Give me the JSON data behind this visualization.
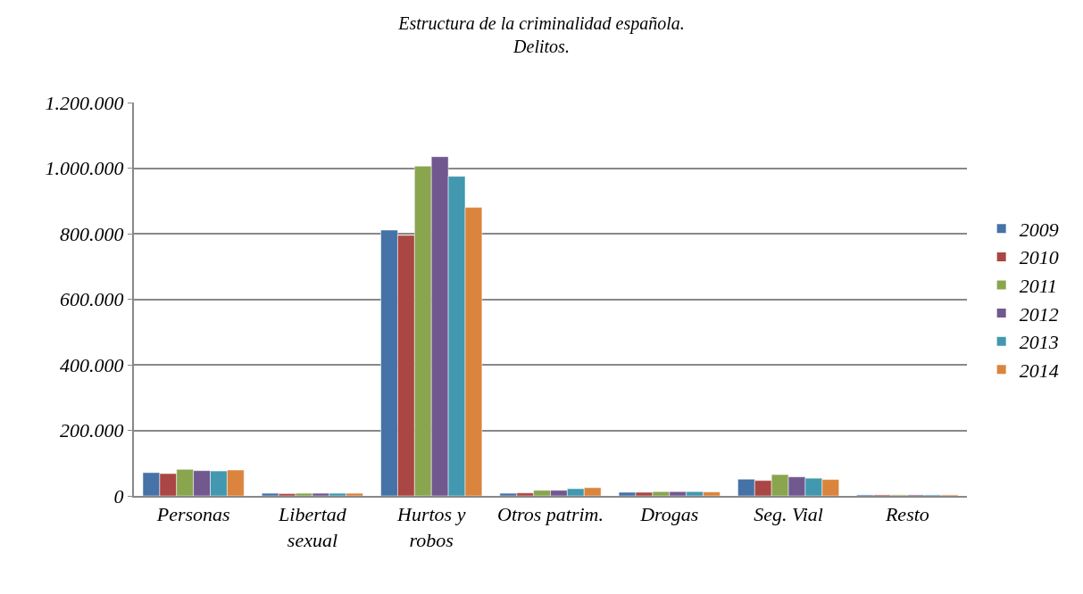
{
  "chart_data": {
    "type": "bar",
    "title": "Estructura de la criminalidad española.\nDelitos.",
    "categories": [
      "Personas",
      "Libertad sexual",
      "Hurtos y robos",
      "Otros patrim.",
      "Drogas",
      "Seg. Vial",
      "Resto"
    ],
    "series": [
      {
        "name": "2009",
        "color": "#4572a7",
        "values": [
          71000,
          8000,
          811000,
          8000,
          11000,
          51000,
          3000
        ]
      },
      {
        "name": "2010",
        "color": "#aa4643",
        "values": [
          68000,
          7000,
          795000,
          9000,
          11000,
          47000,
          3000
        ]
      },
      {
        "name": "2011",
        "color": "#89a54e",
        "values": [
          81000,
          8000,
          1006000,
          17000,
          13000,
          65000,
          3000
        ]
      },
      {
        "name": "2012",
        "color": "#71588f",
        "values": [
          77000,
          8000,
          1035000,
          17000,
          13000,
          58000,
          3000
        ]
      },
      {
        "name": "2013",
        "color": "#4198af",
        "values": [
          76000,
          8000,
          975000,
          22000,
          13000,
          54000,
          3000
        ]
      },
      {
        "name": "2014",
        "color": "#db843d",
        "values": [
          79000,
          8000,
          880000,
          25000,
          12000,
          50000,
          3000
        ]
      }
    ],
    "ylim": [
      0,
      1200000
    ],
    "yticks": [
      {
        "value": 0,
        "label": "0"
      },
      {
        "value": 200000,
        "label": "200.000"
      },
      {
        "value": 400000,
        "label": "400.000"
      },
      {
        "value": 600000,
        "label": "600.000"
      },
      {
        "value": 800000,
        "label": "800.000"
      },
      {
        "value": 1000000,
        "label": "1.000.000"
      },
      {
        "value": 1200000,
        "label": "1.200.000"
      }
    ],
    "grid": "y",
    "legend": "right"
  }
}
